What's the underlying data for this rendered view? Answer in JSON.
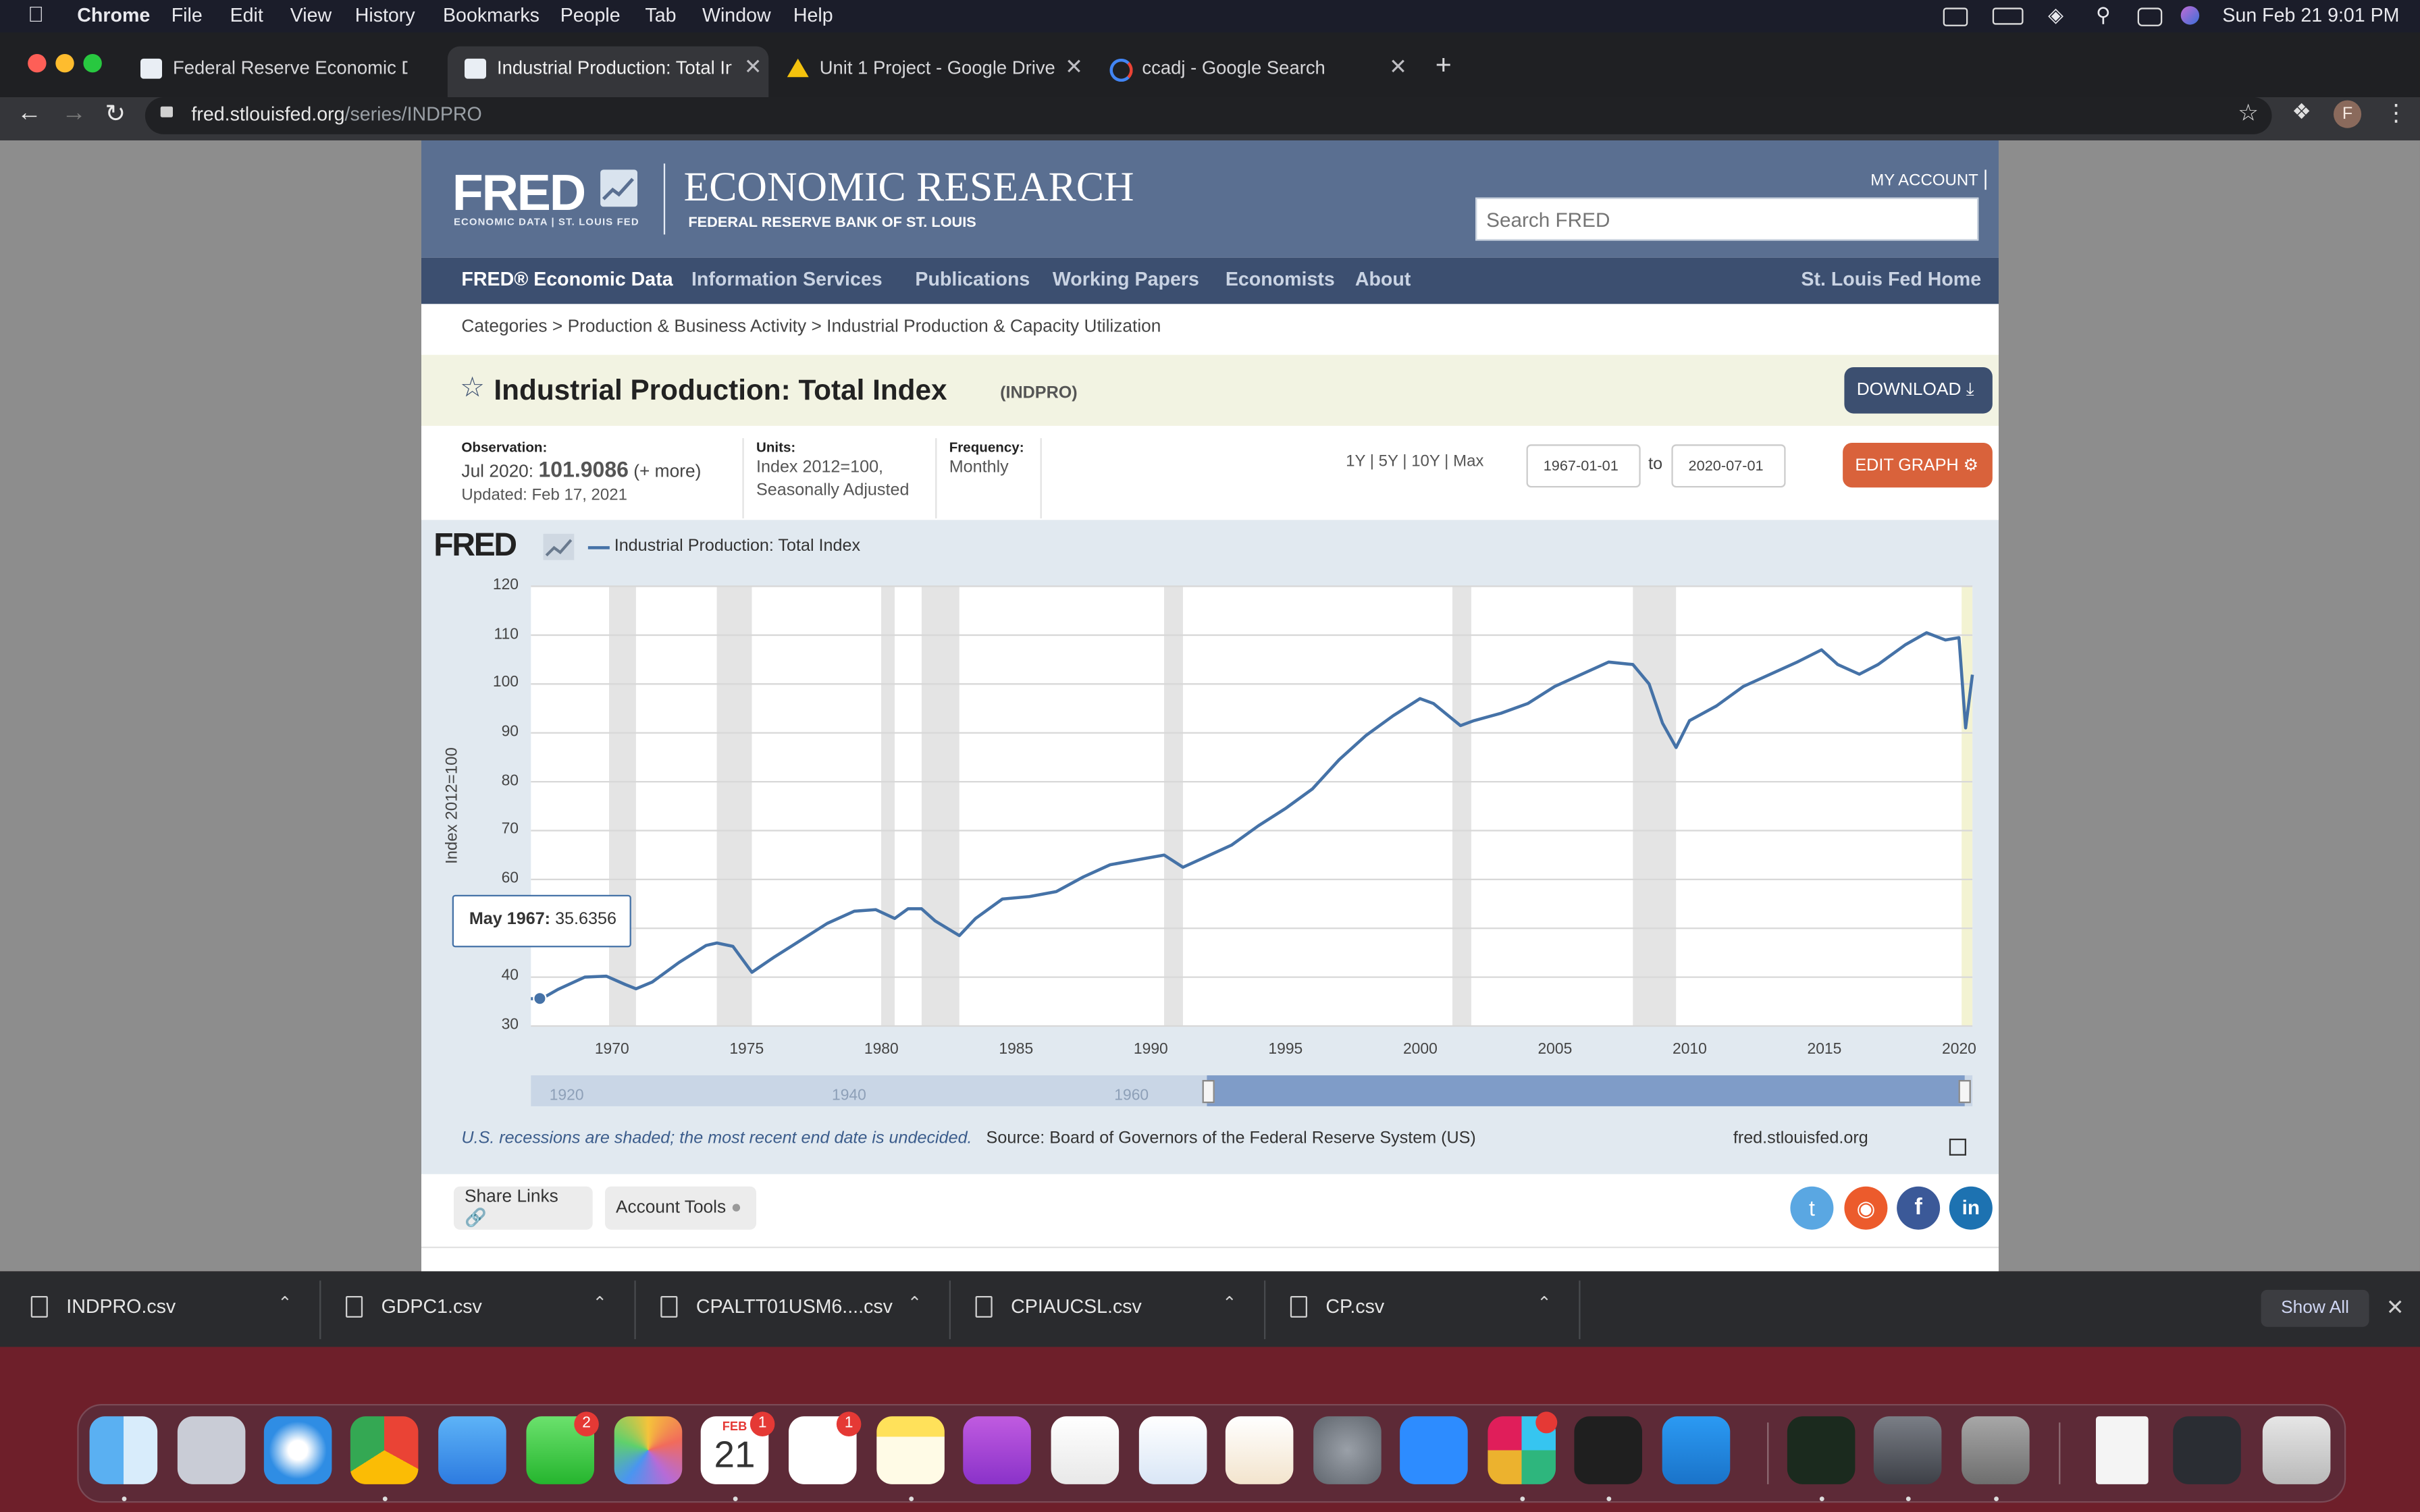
{
  "menubar": {
    "app": "Chrome",
    "menus": [
      "File",
      "Edit",
      "View",
      "History",
      "Bookmarks",
      "People",
      "Tab",
      "Window",
      "Help"
    ],
    "clock": "Sun Feb 21  9:01 PM"
  },
  "tabs": [
    {
      "label": "Federal Reserve Economic Dat",
      "icon": "fred-favicon-icon"
    },
    {
      "label": "Industrial Production: Total Ind",
      "icon": "fred-favicon-icon"
    },
    {
      "label": "Unit 1 Project - Google Drive",
      "icon": "google-drive-icon"
    },
    {
      "label": "ccadj - Google Search",
      "icon": "google-icon"
    }
  ],
  "address": {
    "host": "fred.stlouisfed.org",
    "path": "/series/INDPRO"
  },
  "fred": {
    "logo_text": "FRED",
    "logo_sub": "ECONOMIC DATA  |  ST. LOUIS FED",
    "econ_research": "ECONOMIC RESEARCH",
    "bank_name": "FEDERAL RESERVE BANK OF ST. LOUIS",
    "my_account": "MY ACCOUNT",
    "search_placeholder": "Search FRED",
    "nav": {
      "economic_data": "FRED® Economic Data",
      "information_services": "Information Services",
      "publications": "Publications",
      "working_papers": "Working Papers",
      "economists": "Economists",
      "about": "About",
      "home": "St. Louis Fed Home"
    },
    "breadcrumb": [
      "Categories",
      "Production & Business Activity",
      "Industrial Production & Capacity Utilization"
    ],
    "breadcrumb_sep": ">",
    "series_title": "Industrial Production: Total Index",
    "series_id": "(INDPRO)",
    "download_label": "DOWNLOAD",
    "observation": {
      "label": "Observation:",
      "date": "Jul 2020:",
      "value": "101.9086",
      "more": "(+ more)",
      "updated": "Updated: Feb 17, 2021"
    },
    "units": {
      "label": "Units:",
      "line1": "Index 2012=100,",
      "line2": "Seasonally Adjusted"
    },
    "frequency": {
      "label": "Frequency:",
      "value": "Monthly"
    },
    "ranges": [
      "1Y",
      "5Y",
      "10Y",
      "Max"
    ],
    "range_sep": "|",
    "date_from": "1967-01-01",
    "date_to": "2020-07-01",
    "to_label": "to",
    "edit_graph": "EDIT GRAPH",
    "graph_logo": "FRED",
    "tooltip": {
      "date": "May 1967:",
      "value": "35.6356"
    },
    "footnote": "U.S. recessions are shaded; the most recent end date is undecided.",
    "source": "Source: Board of Governors of the Federal Reserve System (US)",
    "site": "fred.stlouisfed.org",
    "share_links": "Share Links",
    "account_tools": "Account Tools"
  },
  "chart_data": {
    "type": "line",
    "ylabel": "Index 2012=100",
    "ylim": [
      30,
      120
    ],
    "yticks": [
      30,
      40,
      50,
      60,
      70,
      80,
      90,
      100,
      110,
      120
    ],
    "xlim": [
      1967.0,
      2020.5
    ],
    "xticks": [
      1970,
      1975,
      1980,
      1985,
      1990,
      1995,
      2000,
      2005,
      2010,
      2015,
      2020
    ],
    "navigator_ticks": [
      "1920",
      "1940",
      "1960"
    ],
    "recessions": [
      [
        1969.9,
        1970.9
      ],
      [
        1973.9,
        1975.2
      ],
      [
        1980.0,
        1980.5
      ],
      [
        1981.5,
        1982.9
      ],
      [
        1990.5,
        1991.2
      ],
      [
        2001.2,
        2001.9
      ],
      [
        2007.9,
        2009.5
      ],
      [
        2020.1,
        2020.5
      ]
    ],
    "series": [
      {
        "name": "Industrial Production: Total Index",
        "color": "#4572a7",
        "x": [
          1967.0,
          1967.4,
          1968.0,
          1969.0,
          1969.8,
          1970.5,
          1970.9,
          1971.5,
          1972.5,
          1973.5,
          1973.9,
          1974.5,
          1975.2,
          1976.0,
          1977.0,
          1978.0,
          1979.0,
          1979.8,
          1980.5,
          1981.0,
          1981.5,
          1982.0,
          1982.9,
          1983.5,
          1984.5,
          1985.5,
          1986.5,
          1987.5,
          1988.5,
          1989.5,
          1990.5,
          1991.2,
          1992.0,
          1993.0,
          1994.0,
          1995.0,
          1996.0,
          1997.0,
          1998.0,
          1999.0,
          2000.0,
          2000.5,
          2001.5,
          2002.0,
          2003.0,
          2004.0,
          2005.0,
          2006.0,
          2007.0,
          2007.9,
          2008.5,
          2009.0,
          2009.5,
          2010.0,
          2011.0,
          2012.0,
          2013.0,
          2014.0,
          2014.9,
          2015.5,
          2016.3,
          2017.0,
          2018.0,
          2018.8,
          2019.5,
          2020.0,
          2020.25,
          2020.5
        ],
        "y": [
          35.6,
          35.6,
          37.5,
          40.0,
          40.2,
          38.5,
          37.6,
          39.0,
          43.0,
          46.5,
          47.0,
          46.3,
          41.0,
          44.0,
          47.5,
          51.0,
          53.5,
          53.8,
          52.0,
          54.0,
          54.0,
          51.5,
          48.5,
          52.0,
          56.0,
          56.5,
          57.5,
          60.5,
          63.0,
          64.0,
          65.0,
          62.5,
          64.5,
          67.0,
          71.0,
          74.5,
          78.5,
          84.5,
          89.5,
          93.5,
          97.0,
          96.0,
          91.5,
          92.5,
          94.0,
          96.0,
          99.5,
          102.0,
          104.5,
          104.0,
          100.0,
          92.0,
          87.0,
          92.5,
          95.5,
          99.5,
          102.0,
          104.5,
          107.0,
          104.0,
          102.0,
          104.0,
          108.0,
          110.5,
          109.0,
          109.5,
          91.0,
          101.9
        ]
      }
    ]
  },
  "downloads": [
    "INDPRO.csv",
    "GDPC1.csv",
    "CPALTT01USM6....csv",
    "CPIAUCSL.csv",
    "CP.csv"
  ],
  "downloads_show_all": "Show All",
  "dock": {
    "calendar_month": "FEB",
    "calendar_day": "21",
    "badges": {
      "messages": "2",
      "calendar": "1",
      "reminders": "1"
    }
  }
}
